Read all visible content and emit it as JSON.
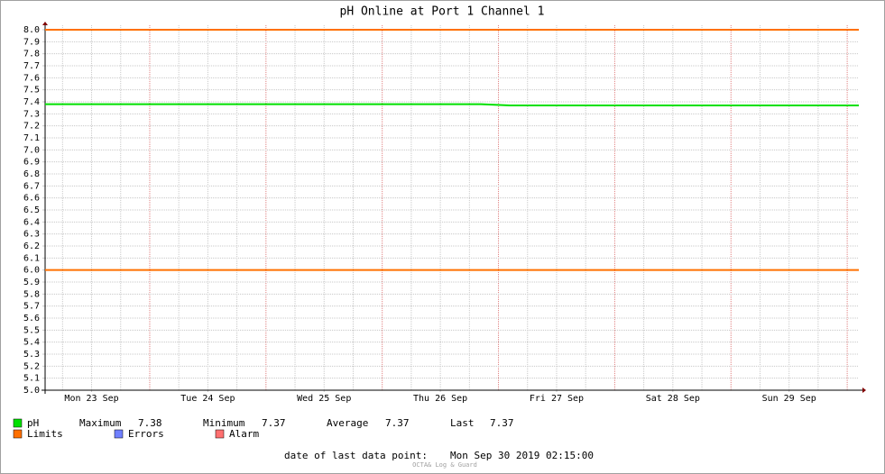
{
  "chart_data": {
    "type": "line",
    "title": "pH Online at Port 1 Channel 1",
    "xlim": [
      0.1,
      7.1
    ],
    "xticks": [
      {
        "value": 0.5,
        "label": "Mon 23 Sep"
      },
      {
        "value": 1.5,
        "label": "Tue 24 Sep"
      },
      {
        "value": 2.5,
        "label": "Wed 25 Sep"
      },
      {
        "value": 3.5,
        "label": "Thu 26 Sep"
      },
      {
        "value": 4.5,
        "label": "Fri 27 Sep"
      },
      {
        "value": 5.5,
        "label": "Sat 28 Sep"
      },
      {
        "value": 6.5,
        "label": "Sun 29 Sep"
      }
    ],
    "ylim": [
      5,
      8
    ],
    "yticks": [
      {
        "value": 5,
        "label": "5.0"
      },
      5.1,
      5.2,
      5.3,
      5.4,
      5.5,
      5.6,
      5.7,
      5.8,
      5.9,
      {
        "value": 6,
        "label": "6.0"
      },
      6.1,
      6.2,
      6.3,
      6.4,
      6.5,
      6.6,
      6.7,
      6.8,
      6.9,
      {
        "value": 7,
        "label": "7.0"
      },
      7.1,
      7.2,
      7.3,
      7.4,
      7.5,
      7.6,
      7.7,
      7.8,
      7.9,
      {
        "value": 8,
        "label": "8.0"
      }
    ],
    "grid": true,
    "series": [
      {
        "name": "pH",
        "color": "#00e000",
        "x": [
          0.1,
          0.35,
          0.6,
          0.85,
          1.1,
          1.35,
          1.6,
          1.85,
          2.1,
          2.35,
          2.6,
          2.85,
          3.1,
          3.35,
          3.6,
          3.85,
          4.1,
          4.35,
          4.6,
          4.85,
          5.1,
          5.35,
          5.6,
          5.85,
          6.1,
          6.35,
          6.6,
          6.85,
          7.1
        ],
        "values": [
          7.38,
          7.38,
          7.38,
          7.38,
          7.38,
          7.38,
          7.38,
          7.38,
          7.38,
          7.38,
          7.38,
          7.38,
          7.38,
          7.38,
          7.38,
          7.38,
          7.37,
          7.37,
          7.37,
          7.37,
          7.37,
          7.37,
          7.37,
          7.37,
          7.37,
          7.37,
          7.37,
          7.37,
          7.37
        ]
      },
      {
        "name": "Limits",
        "color": "#ff7000",
        "values": [
          8.0,
          6.0
        ]
      }
    ],
    "legend_extra": [
      {
        "name": "Errors",
        "color": "#7080ff"
      },
      {
        "name": "Alarm",
        "color": "#ff7070"
      }
    ],
    "stats": [
      {
        "label": "Maximum",
        "value": 7.38
      },
      {
        "label": "Minimum",
        "value": 7.37
      },
      {
        "label": "Average",
        "value": 7.37
      },
      {
        "label": "Last",
        "value": 7.37
      }
    ],
    "footer_label": "date of last data point:",
    "footer_value": "Mon Sep 30 2019 02:15:00",
    "watermark": "OCTA& Log & Guard"
  }
}
